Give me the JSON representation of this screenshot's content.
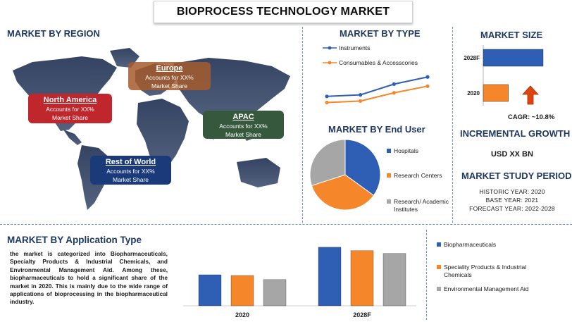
{
  "header": {
    "title": "BIOPROCESS TECHNOLOGY MARKET"
  },
  "colors": {
    "blue": "#2e5fb4",
    "orange": "#f5862a",
    "gray": "#a6a6a6",
    "navy": "#1f3864",
    "red_box": "#c0272d",
    "tan_box": "#a65c2e",
    "green_box": "#36593e",
    "blue_box": "#1a3a7a",
    "arrow": "#e0440e"
  },
  "region": {
    "title": "MARKET BY REGION",
    "boxes": [
      {
        "name": "North America",
        "line1": "Accounts for XX%",
        "line2": "Market Share"
      },
      {
        "name": "Europe",
        "line1": "Accounts for XX%",
        "line2": "Market Share"
      },
      {
        "name": "APAC",
        "line1": "Accounts for XX%",
        "line2": "Market Share"
      },
      {
        "name": "Rest of World",
        "line1": "Accounts for XX%",
        "line2": "Market Share"
      }
    ]
  },
  "type_section": {
    "title": "MARKET BY TYPE"
  },
  "enduser_section": {
    "title": "MARKET BY End User"
  },
  "size_section": {
    "title": "MARKET SIZE",
    "cagr_label": "CAGR:",
    "cagr_value": "~10.8%",
    "incremental_title": "INCREMENTAL GROWTH",
    "incremental_value": "USD XX BN",
    "study_title": "MARKET STUDY PERIOD",
    "historic": "HISTORIC YEAR: 2020",
    "base": "BASE YEAR: 2021",
    "forecast": "FORECAST YEAR: 2022-2028"
  },
  "application_section": {
    "title": "MARKET BY Application Type",
    "paragraph": "the market is categorized into Biopharmaceuticals, Specialty Products & Industrial Chemicals, and Environmental Management Aid. Among these, biopharmaceuticals to hold a significant share of the market in 2020. This is mainly due to the wide range of applications of bioprocessing in the biopharmaceutical industry."
  },
  "chart_data": [
    {
      "type": "line",
      "x": [
        1,
        2,
        3,
        4
      ],
      "series": [
        {
          "name": "Instruments",
          "color": "#2e5fb4",
          "values": [
            3.2,
            3.5,
            5.6,
            7.0
          ]
        },
        {
          "name": "Consumables & Accesscories",
          "color": "#f5862a",
          "values": [
            2.0,
            2.3,
            3.9,
            5.2
          ]
        }
      ],
      "ylim": [
        0,
        8
      ],
      "grid": false
    },
    {
      "type": "pie",
      "slices": [
        {
          "label": "Hospitals",
          "value": 35,
          "color": "#2e5fb4"
        },
        {
          "label": "Research Centers",
          "value": 35,
          "color": "#f5862a"
        },
        {
          "label": "Research/ Academic Institutes",
          "value": 30,
          "color": "#a6a6a6"
        }
      ]
    },
    {
      "type": "bar",
      "orientation": "horizontal",
      "categories": [
        "2028F",
        "2020"
      ],
      "values": [
        100,
        42
      ],
      "colors": [
        "#2e5fb4",
        "#f5862a"
      ],
      "xlim": [
        0,
        100
      ]
    },
    {
      "type": "bar",
      "categories": [
        "2020",
        "2028F"
      ],
      "series": [
        {
          "name": "Biopharmaceuticals",
          "color": "#2e5fb4",
          "values": [
            45,
            85
          ]
        },
        {
          "name": "Speciality Products & Industrial Chemicals",
          "color": "#f5862a",
          "values": [
            44,
            80
          ]
        },
        {
          "name": "Environmental Management Aid",
          "color": "#a6a6a6",
          "values": [
            38,
            76
          ]
        }
      ],
      "ylim": [
        0,
        90
      ]
    }
  ]
}
